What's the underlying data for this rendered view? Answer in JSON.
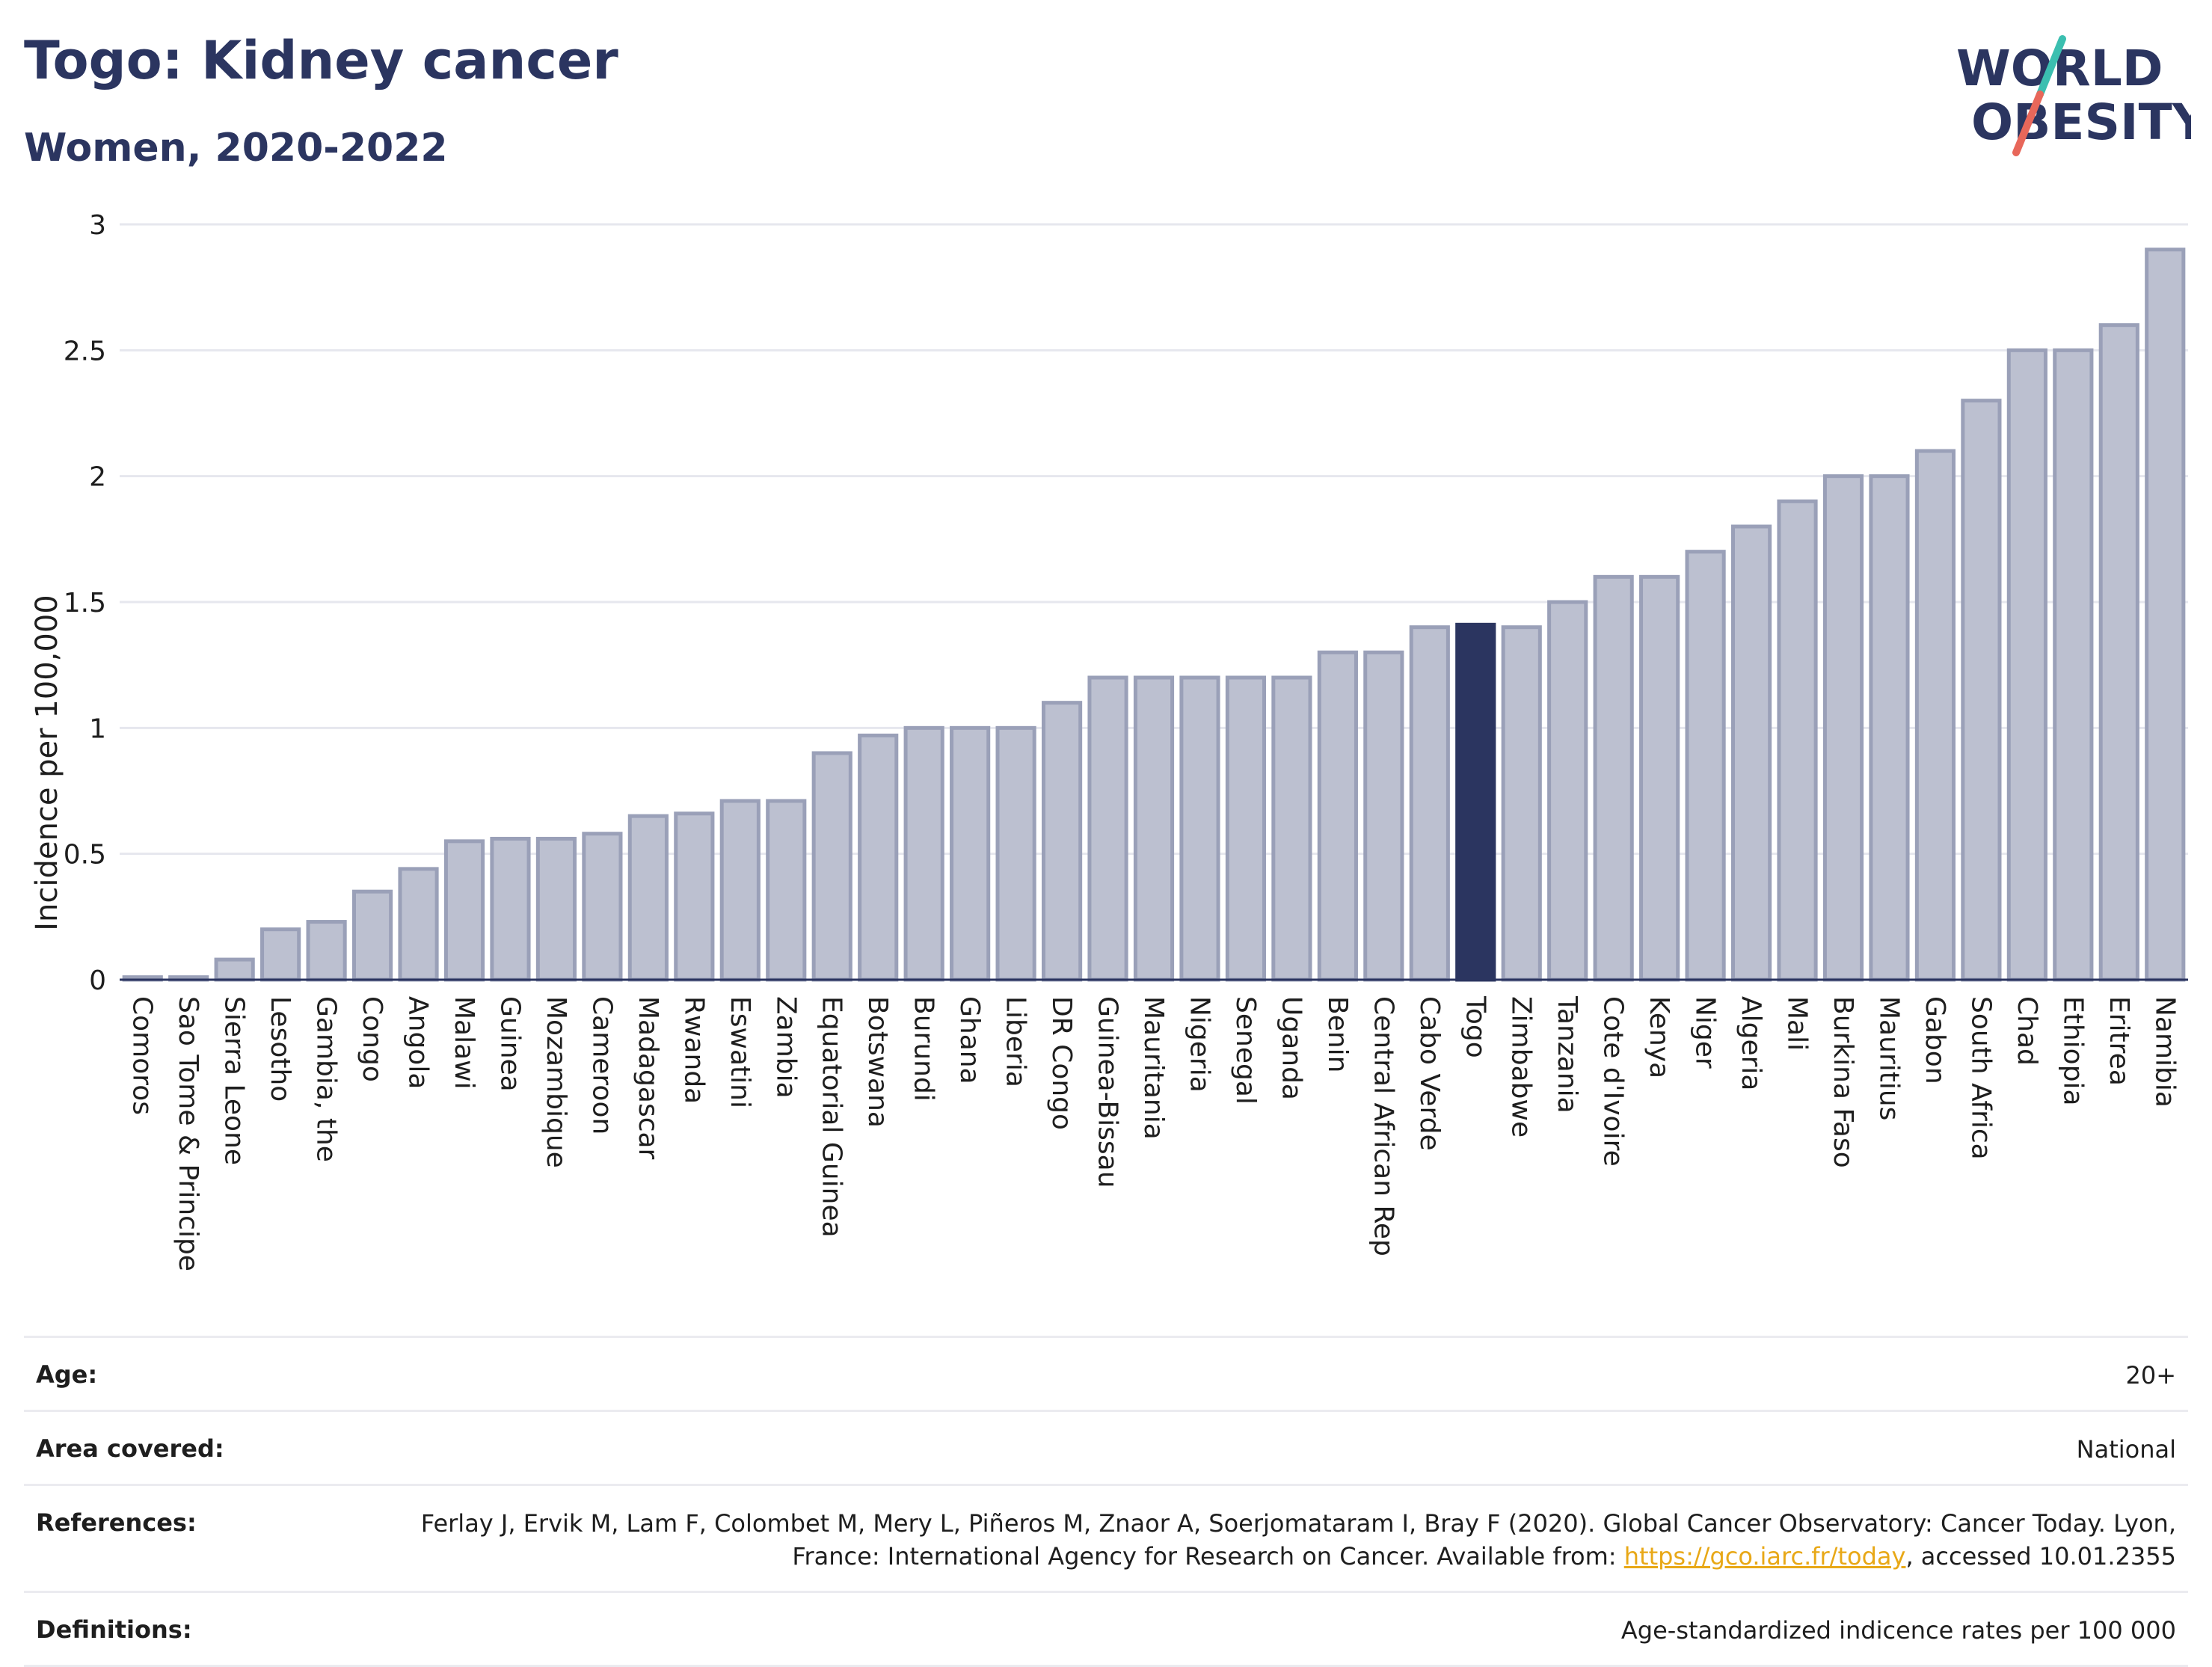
{
  "title": "Togo: Kidney cancer",
  "subtitle": "Women, 2020-2022",
  "logo": {
    "line1": "WORLD",
    "line2": "OBESITY",
    "accent_colors": [
      "#3bbfb0",
      "#e8675a"
    ]
  },
  "colors": {
    "bar": "#bcc0d0",
    "bar_border": "#9aa0b8",
    "highlight": "#2b3560",
    "grid": "#e6e7ee"
  },
  "chart_data": {
    "type": "bar",
    "title": "Togo: Kidney cancer",
    "subtitle": "Women, 2020-2022",
    "xlabel": "",
    "ylabel": "Incidence per 100,000",
    "ylim": [
      0,
      3
    ],
    "yticks": [
      0,
      0.5,
      1,
      1.5,
      2,
      2.5,
      3
    ],
    "ytick_labels": [
      "0",
      "0.5",
      "1",
      "1.5",
      "2",
      "2.5",
      "3"
    ],
    "grid": true,
    "highlight": "Togo",
    "categories": [
      "Comoros",
      "Sao Tome & Principe",
      "Sierra Leone",
      "Lesotho",
      "Gambia, the",
      "Congo",
      "Angola",
      "Malawi",
      "Guinea",
      "Mozambique",
      "Cameroon",
      "Madagascar",
      "Rwanda",
      "Eswatini",
      "Zambia",
      "Equatorial Guinea",
      "Botswana",
      "Burundi",
      "Ghana",
      "Liberia",
      "DR Congo",
      "Guinea-Bissau",
      "Mauritania",
      "Nigeria",
      "Senegal",
      "Uganda",
      "Benin",
      "Central African Rep",
      "Cabo Verde",
      "Togo",
      "Zimbabwe",
      "Tanzania",
      "Cote d'Ivoire",
      "Kenya",
      "Niger",
      "Algeria",
      "Mali",
      "Burkina Faso",
      "Mauritius",
      "Gabon",
      "South Africa",
      "Chad",
      "Ethiopia",
      "Eritrea",
      "Namibia"
    ],
    "values": [
      0.01,
      0.01,
      0.08,
      0.2,
      0.23,
      0.35,
      0.44,
      0.55,
      0.56,
      0.56,
      0.58,
      0.65,
      0.66,
      0.71,
      0.71,
      0.9,
      0.97,
      1.0,
      1.0,
      1.0,
      1.1,
      1.2,
      1.2,
      1.2,
      1.2,
      1.2,
      1.3,
      1.3,
      1.4,
      1.41,
      1.4,
      1.5,
      1.6,
      1.6,
      1.7,
      1.8,
      1.9,
      2.0,
      2.0,
      2.1,
      2.3,
      2.5,
      2.5,
      2.6,
      2.9
    ]
  },
  "info": {
    "age_label": "Age:",
    "age_value": "20+",
    "area_label": "Area covered:",
    "area_value": "National",
    "references_label": "References:",
    "references_text": "Ferlay J, Ervik M, Lam F, Colombet M, Mery L, Piñeros M, Znaor A, Soerjomataram I, Bray F (2020). Global Cancer Observatory: Cancer Today. Lyon, France: International Agency for Research on Cancer. Available from: ",
    "references_link": "https://gco.iarc.fr/today",
    "references_suffix": ", accessed 10.01.2355",
    "definitions_label": "Definitions:",
    "definitions_value": "Age-standardized indicence rates per 100 000"
  }
}
